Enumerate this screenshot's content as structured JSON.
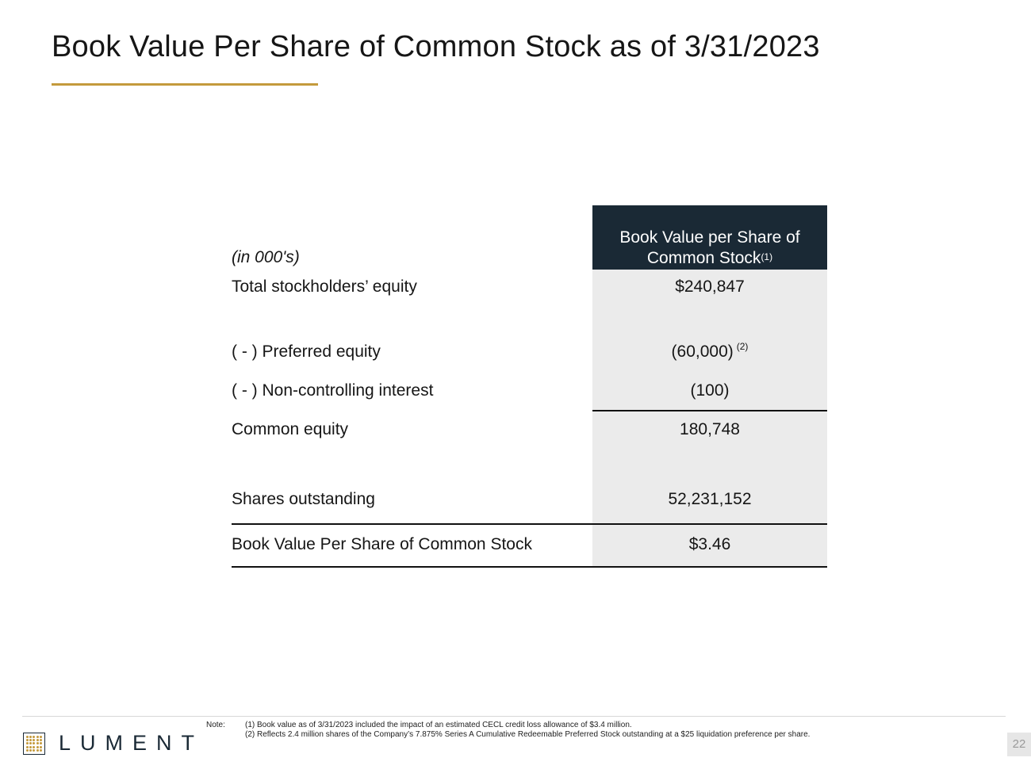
{
  "title": "Book Value Per Share of Common Stock as of 3/31/2023",
  "table": {
    "unit_label": "(in 000's)",
    "header_line1": "Book Value per Share of",
    "header_line2": "Common Stock",
    "header_sup": "(1)",
    "rows": [
      {
        "label": "Total stockholders’ equity",
        "value": "$240,847",
        "sup": ""
      },
      {
        "label": "( - ) Preferred equity",
        "value": "(60,000)",
        "sup": "(2)"
      },
      {
        "label": "( - ) Non-controlling interest",
        "value": "(100)",
        "sup": ""
      },
      {
        "label": "Common equity",
        "value": "180,748",
        "sup": ""
      },
      {
        "label": "Shares outstanding",
        "value": "52,231,152",
        "sup": ""
      },
      {
        "label": "Book Value Per Share of Common Stock",
        "value": "$3.46",
        "sup": ""
      }
    ]
  },
  "footer": {
    "note_label": "Note:",
    "notes": [
      "(1) Book value as of 3/31/2023 included the impact of an estimated CECL credit loss allowance of $3.4 million.",
      "(2) Reflects 2.4 million shares of the Company’s 7.875% Series A Cumulative Redeemable Preferred Stock outstanding at a $25 liquidation preference per share."
    ],
    "logo_text": "LUMENT",
    "page_number": "22"
  },
  "colors": {
    "accent_gold": "#c49a3c",
    "header_navy": "#1a2935",
    "value_column_gray": "#ebebeb"
  },
  "icons": {
    "logo": "lument-dot-grid-logo-icon"
  }
}
